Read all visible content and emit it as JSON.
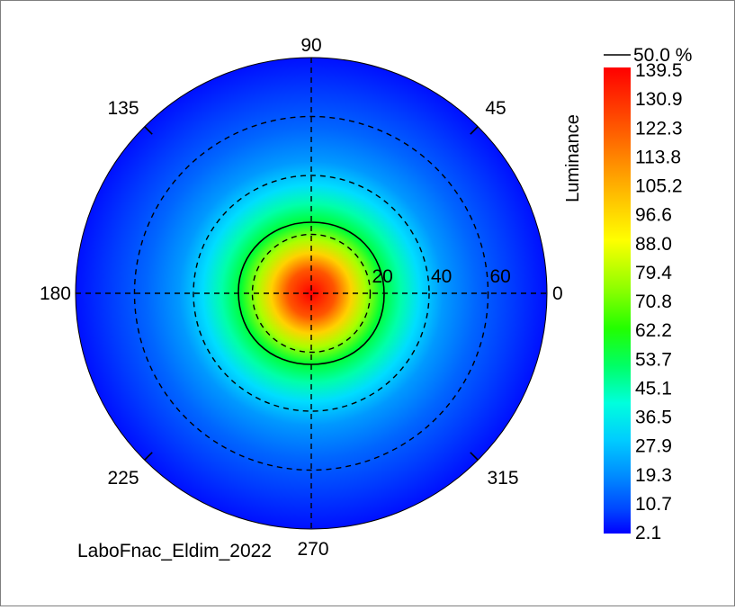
{
  "chart_data": {
    "type": "heatmap",
    "projection": "polar",
    "angle_labels": [
      {
        "angle": 90,
        "text": "90"
      },
      {
        "angle": 45,
        "text": "45"
      },
      {
        "angle": 135,
        "text": "135"
      },
      {
        "angle": 180,
        "text": "180"
      },
      {
        "angle": 0,
        "text": "0"
      },
      {
        "angle": 225,
        "text": "225"
      },
      {
        "angle": 315,
        "text": "315"
      },
      {
        "angle": 270,
        "text": "270"
      }
    ],
    "radial_ticks": [
      20,
      40,
      60
    ],
    "radial_max": 80,
    "radial_tick_labels": [
      "20",
      "40",
      "60"
    ],
    "grid": true,
    "colorbar": {
      "label": "Luminance",
      "min": 2.1,
      "max": 139.5,
      "ticks": [
        "139.5",
        "130.9",
        "122.3",
        "113.8",
        "105.2",
        "96.6",
        "88.0",
        "79.4",
        "70.8",
        "62.2",
        "53.7",
        "45.1",
        "36.5",
        "27.9",
        "19.3",
        "10.7",
        "2.1"
      ],
      "colors": [
        "#0000ff",
        "#0044ff",
        "#0088ff",
        "#00ccff",
        "#00ffdd",
        "#00ff66",
        "#22ff00",
        "#88ff00",
        "#ffff00",
        "#ffbb00",
        "#ff6600",
        "#ff0000"
      ]
    },
    "contour": {
      "label": "50.0 %",
      "level_fraction": 0.5
    },
    "peak": {
      "value": 139.5,
      "theta": 0,
      "r": 0
    },
    "footer_text": "LaboFnac_Eldim_2022"
  }
}
